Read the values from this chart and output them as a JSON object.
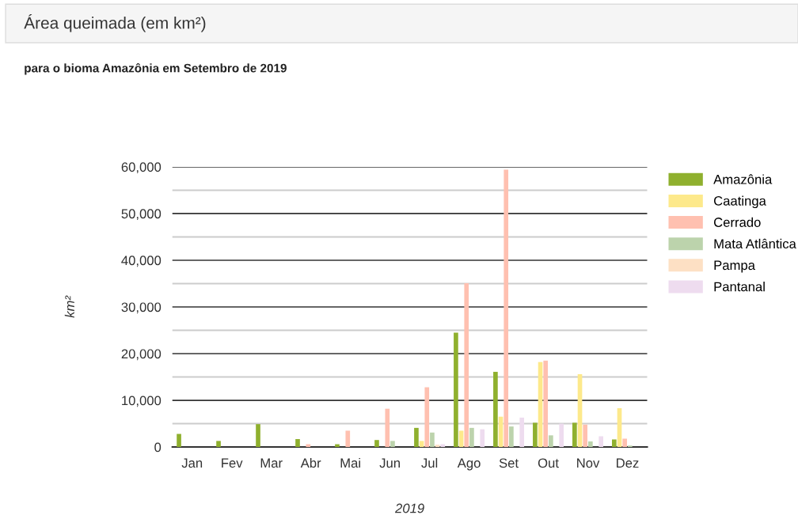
{
  "chart_data": {
    "type": "bar",
    "title": "Área queimada (em km²)",
    "subtitle": "para o bioma Amazônia em Setembro de 2019",
    "xlabel": "2019",
    "ylabel": "km²",
    "categories": [
      "Jan",
      "Fev",
      "Mar",
      "Abr",
      "Mai",
      "Jun",
      "Jul",
      "Ago",
      "Set",
      "Out",
      "Nov",
      "Dez"
    ],
    "series": [
      {
        "name": "Amazônia",
        "color": "#8fb02e",
        "values": [
          2800,
          1300,
          4900,
          1700,
          600,
          1500,
          4100,
          24500,
          16100,
          5200,
          5200,
          1600
        ]
      },
      {
        "name": "Caatinga",
        "color": "#fde98b",
        "values": [
          0,
          0,
          0,
          0,
          0,
          0,
          1300,
          3500,
          6500,
          18200,
          15600,
          8300
        ]
      },
      {
        "name": "Cerrado",
        "color": "#ffc0b0",
        "values": [
          0,
          0,
          0,
          600,
          3500,
          8200,
          12800,
          35100,
          59400,
          18500,
          4800,
          1800
        ]
      },
      {
        "name": "Mata Atlântica",
        "color": "#bcd3ac",
        "values": [
          0,
          0,
          0,
          0,
          0,
          1300,
          3100,
          4100,
          4400,
          2500,
          1200,
          300
        ]
      },
      {
        "name": "Pampa",
        "color": "#fde0c4",
        "values": [
          0,
          0,
          0,
          0,
          0,
          0,
          500,
          0,
          0,
          0,
          0,
          0
        ]
      },
      {
        "name": "Pantanal",
        "color": "#eedcef",
        "values": [
          0,
          0,
          0,
          0,
          0,
          0,
          600,
          3800,
          6300,
          5000,
          2300,
          0
        ]
      }
    ],
    "ylim": [
      0,
      60000
    ],
    "yticks": [
      {
        "value": 0,
        "label": "0"
      },
      {
        "value": 5000,
        "label": null
      },
      {
        "value": 10000,
        "label": "10,000"
      },
      {
        "value": 15000,
        "label": null
      },
      {
        "value": 20000,
        "label": "20,000"
      },
      {
        "value": 25000,
        "label": null
      },
      {
        "value": 30000,
        "label": "30,000"
      },
      {
        "value": 35000,
        "label": null
      },
      {
        "value": 40000,
        "label": "40,000"
      },
      {
        "value": 45000,
        "label": null
      },
      {
        "value": 50000,
        "label": "50,000"
      },
      {
        "value": 55000,
        "label": null
      },
      {
        "value": 60000,
        "label": "60,000"
      }
    ],
    "grid": "y",
    "legend": "right"
  }
}
